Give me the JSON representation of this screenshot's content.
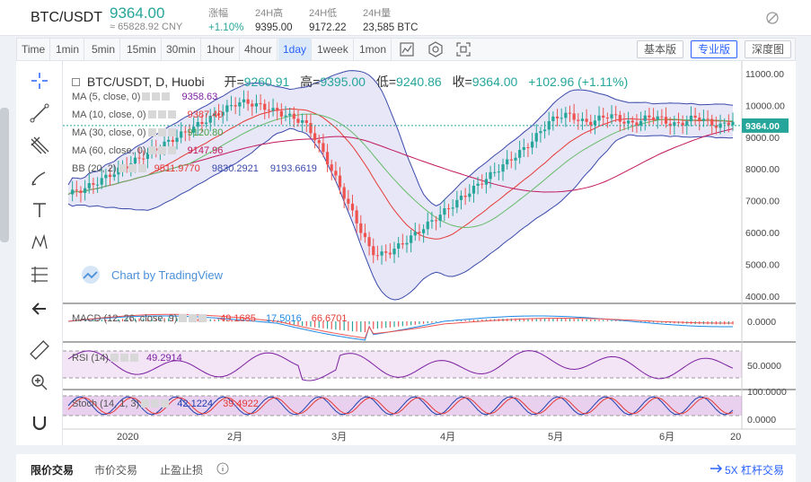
{
  "header": {
    "pair": "BTC/USDT",
    "price": "9364.00",
    "price_cny": "≈ 65828.92 CNY",
    "change_label": "涨幅",
    "change_value": "+1.10%",
    "high_label": "24H高",
    "high_value": "9395.00",
    "low_label": "24H低",
    "low_value": "9172.22",
    "volume_label": "24H量",
    "volume_value": "23,585 BTC"
  },
  "toolbar": {
    "timeframes": [
      "Time",
      "1min",
      "5min",
      "15min",
      "30min",
      "1hour",
      "4hour",
      "1day",
      "1week",
      "1mon"
    ],
    "active_timeframe": "1day",
    "mode_basic": "基本版",
    "mode_pro": "专业版",
    "mode_depth": "深度图"
  },
  "chart": {
    "symbol": "BTC/USDT, D, Huobi",
    "open_label": "开=",
    "open_value": "9260.91",
    "high_label": "高=",
    "high_value": "9395.00",
    "low_label": "低=",
    "low_value": "9240.86",
    "close_label": "收=",
    "close_value": "9364.00",
    "change": "+102.96 (+1.11%)",
    "ma5_label": "MA (5, close, 0)",
    "ma5_value": "9358.63",
    "ma10_label": "MA (10, close, 0)",
    "ma10_value": "9387.40",
    "ma30_label": "MA (30, close, 0)",
    "ma30_value": "9120.80",
    "ma60_label": "MA (60, close, 0)",
    "ma60_value": "9147.96",
    "bb_label": "BB (20, 2)",
    "bb_mid": "9511.9770",
    "bb_upper": "9830.2921",
    "bb_lower": "9193.6619",
    "watermark": "Chart by TradingView",
    "current_price_tag": "9364.00",
    "y_ticks": [
      "11000.00",
      "10000.00",
      "9000.00",
      "8000.00",
      "7000.00",
      "6000.00",
      "5000.00",
      "4000.00"
    ],
    "x_ticks": [
      "2020",
      "2月",
      "3月",
      "4月",
      "5月",
      "6月",
      "20"
    ],
    "macd_label": "MACD (12, 26, close, 9)",
    "macd_values": [
      "-49.1685",
      "17.5016",
      "66.6701"
    ],
    "macd_tick": "0.0000",
    "rsi_label": "RSI (14)",
    "rsi_value": "49.2914",
    "rsi_tick": "50.0000",
    "stoch_label": "Stoch (14, 1, 3)",
    "stoch_values": [
      "42.1224",
      "39.4922"
    ],
    "stoch_ticks": [
      "100.0000",
      "0.0000"
    ],
    "colors": {
      "up": "#26a69a",
      "down": "#ef5350",
      "bb": "#5b5fc7",
      "accent": "#2962ff"
    }
  },
  "left_tools": [
    "crosshair-icon",
    "trendline-icon",
    "pitchfork-icon",
    "brush-icon",
    "text-icon",
    "pattern-icon",
    "fib-icon",
    "back-arrow-icon",
    "ruler-icon",
    "zoom-icon",
    "magnet-icon"
  ],
  "bottom": {
    "tab_limit": "限价交易",
    "tab_market": "市价交易",
    "tab_stop": "止盈止损",
    "leverage": "5X 杠杆交易"
  }
}
